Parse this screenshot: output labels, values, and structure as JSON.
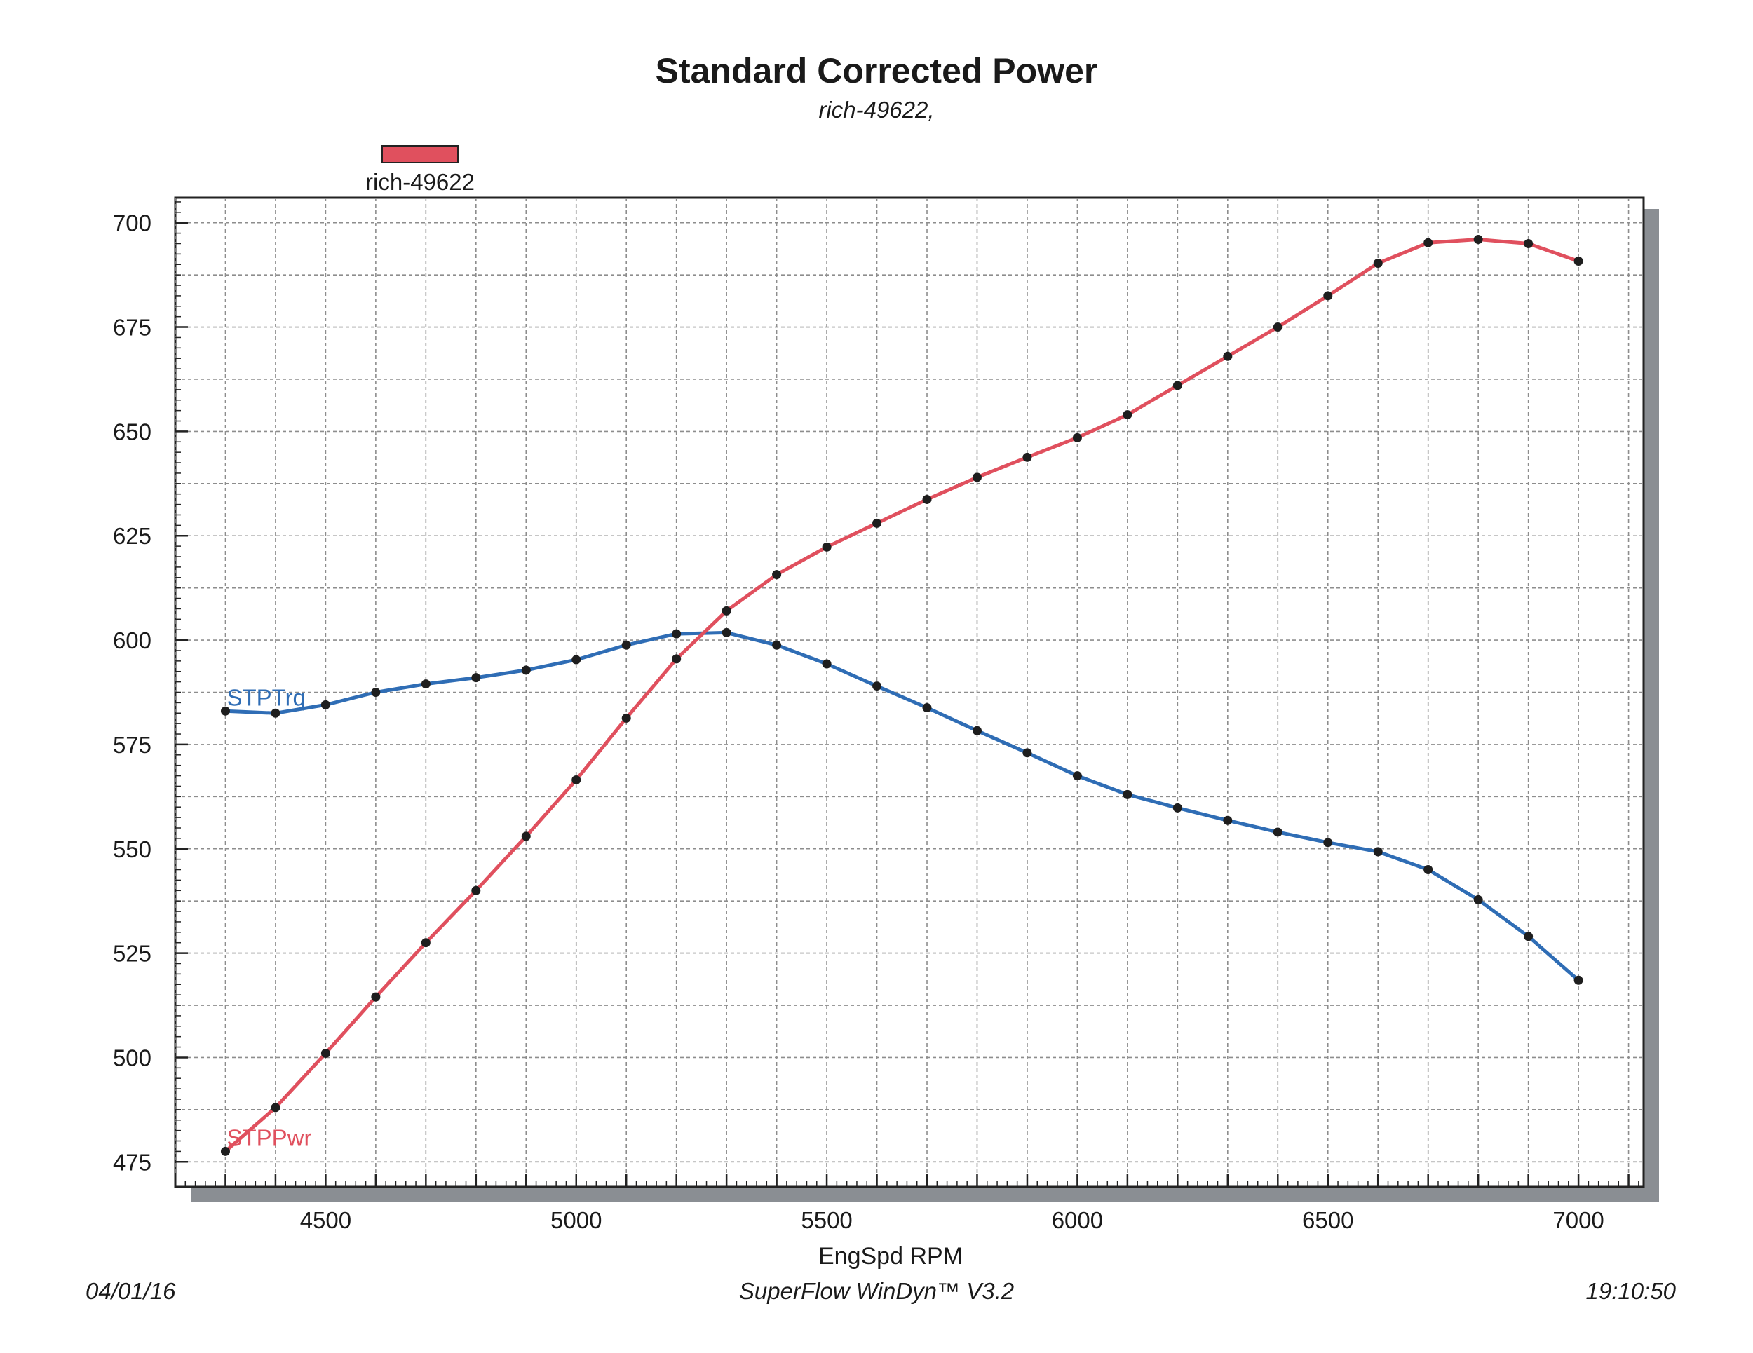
{
  "chart_data": {
    "type": "line",
    "title": "Standard Corrected Power",
    "subtitle": "rich-49622,",
    "xlabel": "EngSpd RPM",
    "ylabel": "",
    "xlim": [
      4200,
      7130
    ],
    "ylim": [
      469,
      706
    ],
    "x_ticks": [
      4500,
      5000,
      5500,
      6000,
      6500,
      7000
    ],
    "y_ticks": [
      475,
      500,
      525,
      550,
      575,
      600,
      625,
      650,
      675,
      700
    ],
    "grid": true,
    "legend": {
      "position": "top-left",
      "entries": [
        {
          "name": "rich-49622",
          "color": "#e0505e"
        }
      ]
    },
    "x": [
      4300,
      4400,
      4500,
      4600,
      4700,
      4800,
      4900,
      5000,
      5100,
      5200,
      5300,
      5400,
      5500,
      5600,
      5700,
      5800,
      5900,
      6000,
      6100,
      6200,
      6300,
      6400,
      6500,
      6600,
      6700,
      6800,
      6900,
      7000
    ],
    "series": [
      {
        "name": "STPTrq",
        "color": "#2f6db5",
        "values": [
          583,
          582.5,
          584.5,
          587.5,
          589.5,
          591,
          592.8,
          595.3,
          598.8,
          601.5,
          601.8,
          598.8,
          594.3,
          589,
          583.8,
          578.3,
          573,
          567.5,
          563,
          559.8,
          556.8,
          554,
          551.5,
          549.3,
          545,
          537.8,
          529,
          518.5
        ]
      },
      {
        "name": "STPPwr",
        "color": "#e0505e",
        "values": [
          477.5,
          488,
          501,
          514.5,
          527.5,
          540,
          553,
          566.5,
          581.3,
          595.5,
          607,
          615.7,
          622.3,
          628,
          633.7,
          639,
          643.8,
          648.5,
          654,
          661,
          668,
          675,
          682.5,
          690.3,
          695.2,
          696,
          695,
          690.8
        ]
      }
    ]
  },
  "footer": {
    "date": "04/01/16",
    "software": "SuperFlow WinDyn™ V3.2",
    "time": "19:10:50"
  }
}
